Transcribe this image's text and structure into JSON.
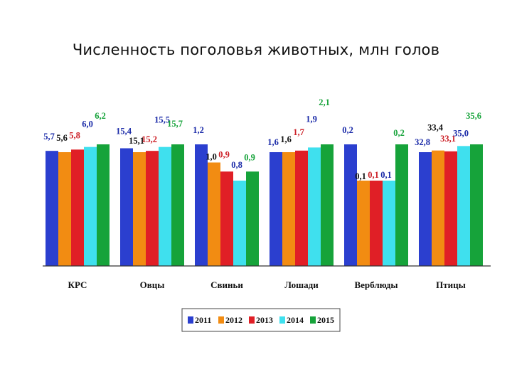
{
  "chart_data": {
    "type": "bar",
    "title": "Численность поголовья животных, млн голов",
    "xlabel": "",
    "ylabel": "",
    "categories": [
      "КРС",
      "Овцы",
      "Свиньи",
      "Лошади",
      "Верблюды",
      "Птицы"
    ],
    "series": [
      {
        "name": "2011",
        "color": "#2b3fcf",
        "values": [
          5.7,
          15.4,
          1.2,
          1.6,
          0.2,
          32.8
        ]
      },
      {
        "name": "2012",
        "color": "#f28c12",
        "values": [
          5.6,
          15.1,
          1.0,
          1.6,
          0.1,
          33.4
        ]
      },
      {
        "name": "2013",
        "color": "#e01f26",
        "values": [
          5.8,
          15.2,
          0.9,
          1.7,
          0.1,
          33.1
        ]
      },
      {
        "name": "2014",
        "color": "#3fe0ee",
        "values": [
          6.0,
          15.5,
          0.8,
          1.9,
          0.1,
          35.0
        ]
      },
      {
        "name": "2015",
        "color": "#16a33a",
        "values": [
          6.2,
          15.7,
          0.9,
          2.1,
          0.2,
          35.6
        ]
      }
    ],
    "labels": [
      [
        "5,7",
        "5,6",
        "5,8",
        "6,0",
        "6,2"
      ],
      [
        "15,4",
        "15,1",
        "15,2",
        "15,5",
        "15,7"
      ],
      [
        "1,2",
        "1,0",
        "0,9",
        "0,8",
        "0,9"
      ],
      [
        "1,6",
        "1,6",
        "1,7",
        "1,9",
        "2,1"
      ],
      [
        "0,2",
        "0,1",
        "0,1",
        "0,1",
        "0,2"
      ],
      [
        "32,8",
        "33,4",
        "33,1",
        "35,0",
        "35,6"
      ]
    ],
    "label_colors": [
      "#1a2aa8",
      "#111111",
      "#cc1f26",
      "#1a2aa8",
      "#16a33a"
    ],
    "scale": "each category group scaled independently",
    "grid": false,
    "legend": "bottom"
  }
}
